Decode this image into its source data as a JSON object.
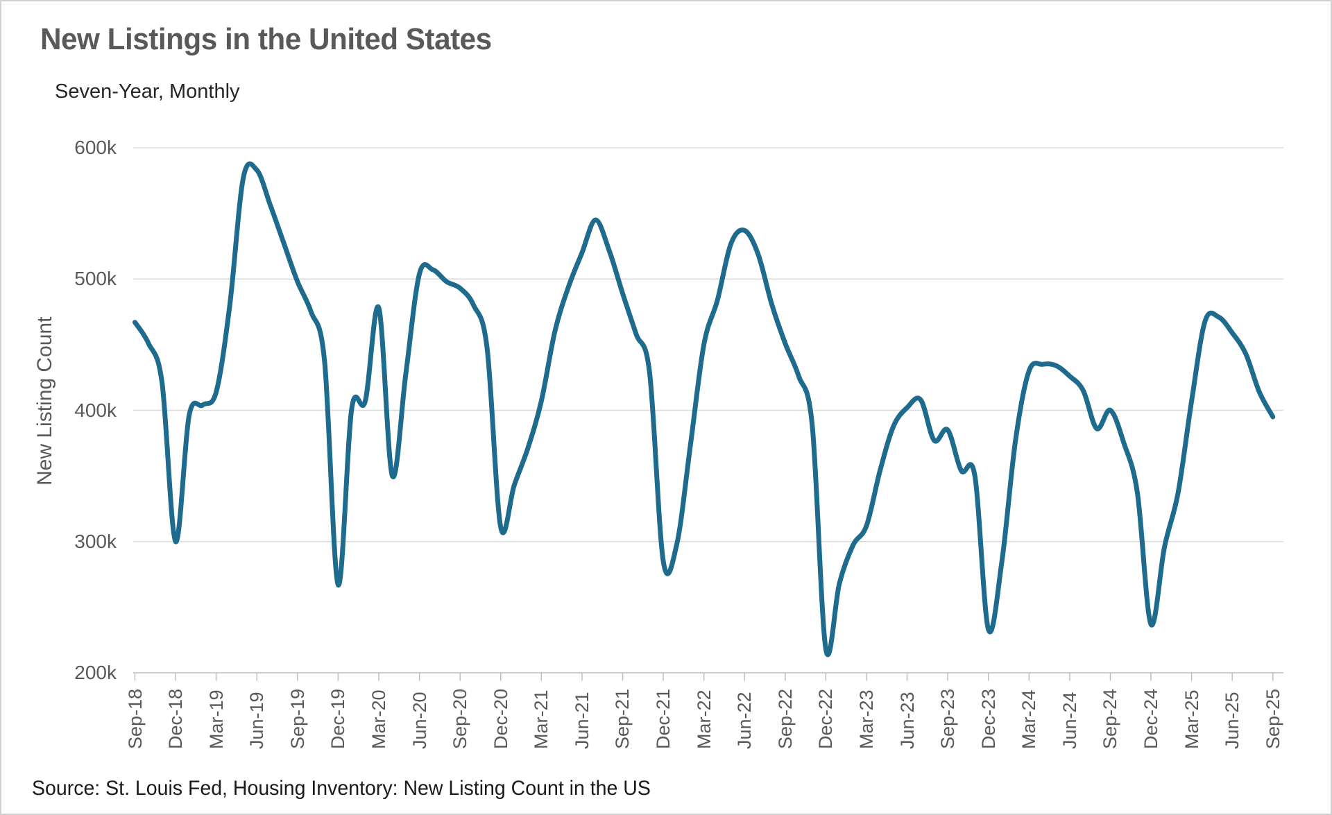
{
  "title": "New Listings in the United States",
  "subtitle": "Seven-Year, Monthly",
  "source": "Source: St. Louis Fed, Housing Inventory: New Listing Count in the US",
  "chart_data": {
    "type": "line",
    "title": "New Listings in the United States",
    "subtitle": "Seven-Year, Monthly",
    "xlabel": "",
    "ylabel": "New Listing Count",
    "unit": "thousands of listings",
    "ylim": [
      200,
      600
    ],
    "grid": "horizontal",
    "legend_position": "none",
    "line_color": "#1f6b8d",
    "grid_color": "#d9d9d9",
    "axis_color": "#bfbfbf",
    "label_color": "#595959",
    "y_ticks": [
      600,
      500,
      400,
      300,
      200
    ],
    "y_tick_labels": [
      "600k",
      "500k",
      "400k",
      "300k",
      "200k"
    ],
    "x_tick_labels": [
      "Sep-18",
      "Dec-18",
      "Mar-19",
      "Jun-19",
      "Sep-19",
      "Dec-19",
      "Mar-20",
      "Jun-20",
      "Sep-20",
      "Dec-20",
      "Mar-21",
      "Jun-21",
      "Sep-21",
      "Dec-21",
      "Mar-22",
      "Jun-22",
      "Sep-22",
      "Dec-22",
      "Mar-23",
      "Jun-23",
      "Sep-23",
      "Dec-23",
      "Mar-24",
      "Jun-24",
      "Sep-24",
      "Dec-24",
      "Mar-25",
      "Jun-25",
      "Sep-25"
    ],
    "x": [
      "Sep-18",
      "Oct-18",
      "Nov-18",
      "Dec-18",
      "Jan-19",
      "Feb-19",
      "Mar-19",
      "Apr-19",
      "May-19",
      "Jun-19",
      "Jul-19",
      "Aug-19",
      "Sep-19",
      "Oct-19",
      "Nov-19",
      "Dec-19",
      "Jan-20",
      "Feb-20",
      "Mar-20",
      "Apr-20",
      "May-20",
      "Jun-20",
      "Jul-20",
      "Aug-20",
      "Sep-20",
      "Oct-20",
      "Nov-20",
      "Dec-20",
      "Jan-21",
      "Feb-21",
      "Mar-21",
      "Apr-21",
      "May-21",
      "Jun-21",
      "Jul-21",
      "Aug-21",
      "Sep-21",
      "Oct-21",
      "Nov-21",
      "Dec-21",
      "Jan-22",
      "Feb-22",
      "Mar-22",
      "Apr-22",
      "May-22",
      "Jun-22",
      "Jul-22",
      "Aug-22",
      "Sep-22",
      "Oct-22",
      "Nov-22",
      "Dec-22",
      "Jan-23",
      "Feb-23",
      "Mar-23",
      "Apr-23",
      "May-23",
      "Jun-23",
      "Jul-23",
      "Aug-23",
      "Sep-23",
      "Oct-23",
      "Nov-23",
      "Dec-23",
      "Jan-24",
      "Feb-24",
      "Mar-24",
      "Apr-24",
      "May-24",
      "Jun-24",
      "Jul-24",
      "Aug-24",
      "Sep-24",
      "Oct-24",
      "Nov-24",
      "Dec-24",
      "Jan-25",
      "Feb-25",
      "Mar-25",
      "Apr-25",
      "May-25",
      "Jun-25",
      "Jul-25",
      "Aug-25",
      "Sep-25"
    ],
    "series": [
      {
        "name": "New Listing Count",
        "values": [
          467,
          451,
          421,
          300,
          396,
          404,
          414,
          480,
          577,
          583,
          556,
          527,
          498,
          475,
          437,
          267,
          401,
          407,
          478,
          350,
          428,
          504,
          507,
          498,
          493,
          480,
          447,
          311,
          343,
          371,
          407,
          460,
          494,
          520,
          545,
          522,
          489,
          458,
          428,
          285,
          298,
          373,
          450,
          484,
          527,
          537,
          519,
          481,
          451,
          426,
          388,
          218,
          268,
          297,
          312,
          354,
          388,
          402,
          408,
          377,
          385,
          354,
          350,
          233,
          285,
          377,
          430,
          435,
          434,
          426,
          415,
          386,
          400,
          375,
          337,
          237,
          296,
          337,
          407,
          468,
          471,
          459,
          443,
          414,
          395
        ]
      }
    ]
  }
}
